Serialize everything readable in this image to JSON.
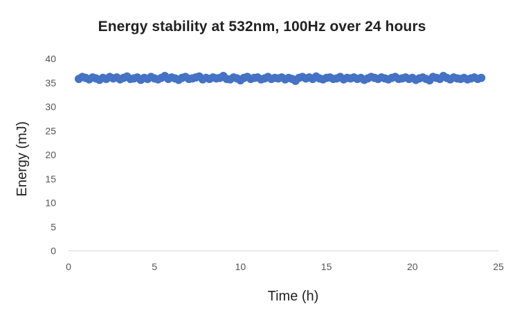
{
  "chart_data": {
    "type": "scatter",
    "title": "Energy stability at 532nm, 100Hz over 24 hours",
    "xlabel": "Time (h)",
    "ylabel": "Energy (mJ)",
    "xlim": [
      0,
      25
    ],
    "ylim": [
      0,
      40
    ],
    "xticks": [
      "0",
      "5",
      "10",
      "15",
      "20",
      "25"
    ],
    "yticks": [
      "0",
      "5",
      "10",
      "15",
      "20",
      "25",
      "30",
      "35",
      "40"
    ],
    "grid": false,
    "legend": "none",
    "series": [
      {
        "color": "#4472c4",
        "x": [
          0.6,
          0.8,
          1.0,
          1.2,
          1.4,
          1.6,
          1.8,
          2.0,
          2.2,
          2.4,
          2.6,
          2.8,
          3.0,
          3.2,
          3.4,
          3.6,
          3.8,
          4.0,
          4.2,
          4.4,
          4.6,
          4.8,
          5.0,
          5.2,
          5.4,
          5.6,
          5.8,
          6.0,
          6.2,
          6.4,
          6.6,
          6.8,
          7.0,
          7.2,
          7.4,
          7.6,
          7.8,
          8.0,
          8.2,
          8.4,
          8.6,
          8.8,
          9.0,
          9.2,
          9.4,
          9.6,
          9.8,
          10.0,
          10.2,
          10.4,
          10.6,
          10.8,
          11.0,
          11.2,
          11.4,
          11.6,
          11.8,
          12.0,
          12.2,
          12.4,
          12.6,
          12.8,
          13.0,
          13.2,
          13.4,
          13.6,
          13.8,
          14.0,
          14.2,
          14.4,
          14.6,
          14.8,
          15.0,
          15.2,
          15.4,
          15.6,
          15.8,
          16.0,
          16.2,
          16.4,
          16.6,
          16.8,
          17.0,
          17.2,
          17.4,
          17.6,
          17.8,
          18.0,
          18.2,
          18.4,
          18.6,
          18.8,
          19.0,
          19.2,
          19.4,
          19.6,
          19.8,
          20.0,
          20.2,
          20.4,
          20.6,
          20.8,
          21.0,
          21.2,
          21.4,
          21.6,
          21.8,
          22.0,
          22.2,
          22.4,
          22.6,
          22.8,
          23.0,
          23.2,
          23.4,
          23.6,
          23.8,
          24.0
        ],
        "y": [
          35.8,
          36.2,
          36.0,
          35.7,
          36.1,
          35.9,
          35.6,
          36.0,
          35.8,
          36.2,
          35.9,
          36.1,
          35.7,
          36.0,
          36.3,
          35.8,
          35.9,
          36.1,
          35.6,
          36.0,
          35.8,
          36.2,
          35.9,
          35.7,
          36.0,
          36.4,
          35.8,
          36.1,
          35.9,
          35.6,
          36.0,
          36.2,
          35.8,
          35.9,
          36.1,
          36.3,
          35.7,
          36.0,
          35.8,
          36.1,
          35.9,
          36.0,
          36.4,
          35.8,
          35.7,
          36.1,
          35.9,
          35.5,
          36.0,
          36.2,
          35.8,
          36.0,
          36.1,
          35.7,
          35.9,
          36.2,
          35.8,
          36.0,
          35.9,
          36.1,
          35.7,
          36.0,
          35.8,
          35.4,
          36.0,
          36.2,
          35.9,
          36.1,
          35.8,
          36.3,
          35.9,
          35.7,
          36.0,
          36.1,
          35.8,
          35.9,
          36.2,
          35.7,
          36.0,
          35.9,
          36.1,
          35.8,
          36.0,
          35.6,
          35.9,
          36.2,
          36.0,
          35.8,
          36.1,
          35.9,
          35.7,
          36.0,
          36.2,
          35.8,
          35.9,
          36.1,
          35.8,
          36.0,
          35.6,
          35.9,
          36.1,
          35.8,
          35.5,
          36.2,
          36.0,
          35.8,
          36.4,
          36.0,
          35.7,
          36.1,
          35.9,
          35.8,
          36.0,
          35.7,
          35.9,
          36.1,
          35.8,
          36.0
        ]
      }
    ]
  }
}
